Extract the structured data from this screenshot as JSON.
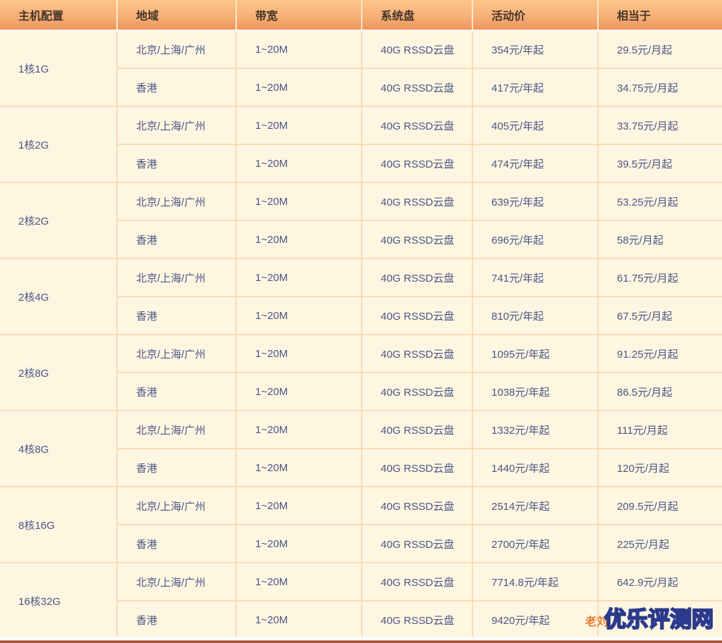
{
  "colors": {
    "header_gradient_top": "#fdc68b",
    "header_gradient_bottom": "#f0955d",
    "header_text": "#45362a",
    "body_bg": "#fff6e2",
    "cell_border": "#fadbb4",
    "header_separator": "#ffe9cb",
    "body_text": "#4b5583",
    "bottom_line": "#a25840",
    "watermark_fill": "#4a5fd2",
    "watermark_outline": "#2b3a8c",
    "watermark_prefix_color": "#e87a2e"
  },
  "table": {
    "headers": [
      "主机配置",
      "地域",
      "带宽",
      "系统盘",
      "活动价",
      "相当于"
    ],
    "groups": [
      {
        "config": "1核1G",
        "rows": [
          {
            "region": "北京/上海/广州",
            "bandwidth": "1~20M",
            "disk": "40G RSSD云盘",
            "price": "354元/年起",
            "monthly": "29.5元/月起"
          },
          {
            "region": "香港",
            "bandwidth": "1~20M",
            "disk": "40G RSSD云盘",
            "price": "417元/年起",
            "monthly": "34.75元/月起"
          }
        ]
      },
      {
        "config": "1核2G",
        "rows": [
          {
            "region": "北京/上海/广州",
            "bandwidth": "1~20M",
            "disk": "40G RSSD云盘",
            "price": "405元/年起",
            "monthly": "33.75元/月起"
          },
          {
            "region": "香港",
            "bandwidth": "1~20M",
            "disk": "40G RSSD云盘",
            "price": "474元/年起",
            "monthly": "39.5元/月起"
          }
        ]
      },
      {
        "config": "2核2G",
        "rows": [
          {
            "region": "北京/上海/广州",
            "bandwidth": "1~20M",
            "disk": "40G RSSD云盘",
            "price": "639元/年起",
            "monthly": "53.25元/月起"
          },
          {
            "region": "香港",
            "bandwidth": "1~20M",
            "disk": "40G RSSD云盘",
            "price": "696元/年起",
            "monthly": "58元/月起"
          }
        ]
      },
      {
        "config": "2核4G",
        "rows": [
          {
            "region": "北京/上海/广州",
            "bandwidth": "1~20M",
            "disk": "40G RSSD云盘",
            "price": "741元/年起",
            "monthly": "61.75元/月起"
          },
          {
            "region": "香港",
            "bandwidth": "1~20M",
            "disk": "40G RSSD云盘",
            "price": "810元/年起",
            "monthly": "67.5元/月起"
          }
        ]
      },
      {
        "config": "2核8G",
        "rows": [
          {
            "region": "北京/上海/广州",
            "bandwidth": "1~20M",
            "disk": "40G RSSD云盘",
            "price": "1095元/年起",
            "monthly": "91.25元/月起"
          },
          {
            "region": "香港",
            "bandwidth": "1~20M",
            "disk": "40G RSSD云盘",
            "price": "1038元/年起",
            "monthly": "86.5元/月起"
          }
        ]
      },
      {
        "config": "4核8G",
        "rows": [
          {
            "region": "北京/上海/广州",
            "bandwidth": "1~20M",
            "disk": "40G RSSD云盘",
            "price": "1332元/年起",
            "monthly": "111元/月起"
          },
          {
            "region": "香港",
            "bandwidth": "1~20M",
            "disk": "40G RSSD云盘",
            "price": "1440元/年起",
            "monthly": "120元/月起"
          }
        ]
      },
      {
        "config": "8核16G",
        "rows": [
          {
            "region": "北京/上海/广州",
            "bandwidth": "1~20M",
            "disk": "40G RSSD云盘",
            "price": "2514元/年起",
            "monthly": "209.5元/月起"
          },
          {
            "region": "香港",
            "bandwidth": "1~20M",
            "disk": "40G RSSD云盘",
            "price": "2700元/年起",
            "monthly": "225元/月起"
          }
        ]
      },
      {
        "config": "16核32G",
        "rows": [
          {
            "region": "北京/上海/广州",
            "bandwidth": "1~20M",
            "disk": "40G RSSD云盘",
            "price": "7714.8元/年起",
            "monthly": "642.9元/月起"
          },
          {
            "region": "香港",
            "bandwidth": "1~20M",
            "disk": "40G RSSD云盘",
            "price": "9420元/年起",
            "monthly": ""
          }
        ]
      }
    ]
  },
  "watermark": {
    "prefix": "老刘",
    "text": "优乐评测网"
  }
}
